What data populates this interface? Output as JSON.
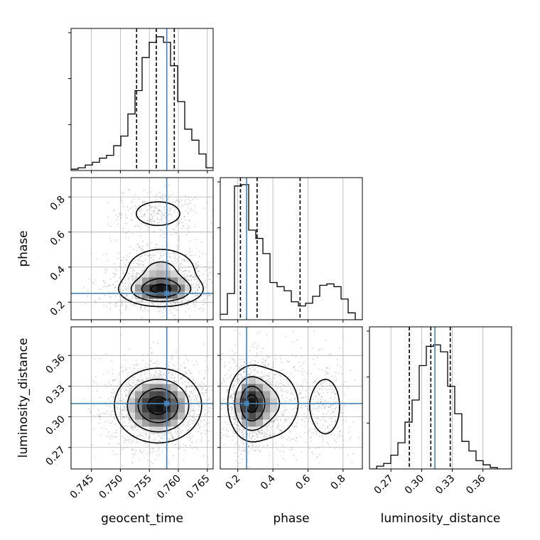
{
  "chart_data": {
    "type": "corner",
    "parameters": [
      "geocent_time",
      "phase",
      "luminosity_distance"
    ],
    "truth": {
      "geocent_time": 0.758,
      "phase": 0.25,
      "luminosity_distance": 0.313
    },
    "quantiles": {
      "geocent_time": [
        0.7528,
        0.7562,
        0.7593
      ],
      "phase": [
        0.215,
        0.31,
        0.555
      ],
      "luminosity_distance": [
        0.288,
        0.309,
        0.328
      ]
    },
    "axes": {
      "geocent_time": {
        "lim": [
          0.7415,
          0.766
        ],
        "ticks": [
          0.745,
          0.75,
          0.755,
          0.76,
          0.765
        ],
        "tick_labels": [
          "0.745",
          "0.750",
          "0.755",
          "0.760",
          "0.765"
        ]
      },
      "phase": {
        "lim": [
          0.1,
          0.91
        ],
        "ticks": [
          0.2,
          0.4,
          0.6,
          0.8
        ],
        "tick_labels": [
          "0.2",
          "0.4",
          "0.6",
          "0.8"
        ]
      },
      "luminosity_distance": {
        "lim": [
          0.249,
          0.388
        ],
        "ticks": [
          0.27,
          0.3,
          0.33,
          0.36
        ],
        "tick_labels": [
          "0.27",
          "0.30",
          "0.33",
          "0.36"
        ]
      }
    },
    "histograms": {
      "geocent_time": {
        "bin_edges": [
          0.7415,
          0.74272,
          0.74395,
          0.74518,
          0.7464,
          0.74762,
          0.74885,
          0.75008,
          0.7513,
          0.75253,
          0.75375,
          0.75498,
          0.7562,
          0.75743,
          0.75865,
          0.75988,
          0.7611,
          0.76232,
          0.76355,
          0.76477,
          0.766
        ],
        "counts": [
          0.01,
          0.02,
          0.04,
          0.06,
          0.09,
          0.11,
          0.18,
          0.25,
          0.41,
          0.58,
          0.82,
          0.93,
          0.97,
          0.93,
          0.76,
          0.5,
          0.3,
          0.22,
          0.12,
          0.02
        ]
      },
      "phase": {
        "bin_edges": [
          0.1,
          0.1405,
          0.181,
          0.2215,
          0.262,
          0.3025,
          0.343,
          0.3835,
          0.424,
          0.4645,
          0.505,
          0.5455,
          0.586,
          0.6265,
          0.667,
          0.7075,
          0.748,
          0.7885,
          0.829,
          0.8695,
          0.91
        ],
        "counts": [
          0.04,
          0.19,
          0.97,
          0.98,
          0.65,
          0.59,
          0.48,
          0.27,
          0.24,
          0.21,
          0.13,
          0.1,
          0.12,
          0.17,
          0.25,
          0.26,
          0.24,
          0.15,
          0.05,
          0.0
        ]
      },
      "luminosity_distance": {
        "bin_edges": [
          0.249,
          0.25595,
          0.2629,
          0.26985,
          0.2768,
          0.28375,
          0.2907,
          0.29765,
          0.3046,
          0.31155,
          0.3185,
          0.32545,
          0.3324,
          0.33935,
          0.3463,
          0.35325,
          0.3602,
          0.36715,
          0.3741,
          0.38105,
          0.388
        ],
        "counts": [
          0.0,
          0.02,
          0.04,
          0.1,
          0.19,
          0.34,
          0.5,
          0.75,
          0.89,
          0.9,
          0.85,
          0.6,
          0.4,
          0.2,
          0.13,
          0.06,
          0.03,
          0.01,
          0.0,
          0.0
        ]
      }
    },
    "density_2d": [
      {
        "x": "geocent_time",
        "y": "phase",
        "modes": [
          {
            "x": 0.757,
            "y": 0.27,
            "sx": 0.0034,
            "sy": 0.045,
            "w": 0.8
          },
          {
            "x": 0.757,
            "y": 0.385,
            "sx": 0.0034,
            "sy": 0.07,
            "w": 0.35
          },
          {
            "x": 0.7565,
            "y": 0.705,
            "sx": 0.0028,
            "sy": 0.05,
            "w": 0.22
          }
        ]
      },
      {
        "x": "geocent_time",
        "y": "luminosity_distance",
        "modes": [
          {
            "x": 0.7565,
            "y": 0.311,
            "sx": 0.0035,
            "sy": 0.017,
            "w": 1.0
          }
        ]
      },
      {
        "x": "phase",
        "y": "luminosity_distance",
        "modes": [
          {
            "x": 0.27,
            "y": 0.313,
            "sx": 0.06,
            "sy": 0.017,
            "w": 0.8
          },
          {
            "x": 0.4,
            "y": 0.313,
            "sx": 0.09,
            "sy": 0.02,
            "w": 0.3
          },
          {
            "x": 0.7,
            "y": 0.31,
            "sx": 0.06,
            "sy": 0.02,
            "w": 0.22
          }
        ]
      }
    ],
    "colors": {
      "truth": "#4682b4",
      "hist": "#000000",
      "grid": "#b0b0b0",
      "points": "#808080"
    },
    "grid": true,
    "xlabels": [
      "geocent_time",
      "phase",
      "luminosity_distance"
    ],
    "ylabels": [
      "",
      "phase",
      "luminosity_distance"
    ]
  }
}
